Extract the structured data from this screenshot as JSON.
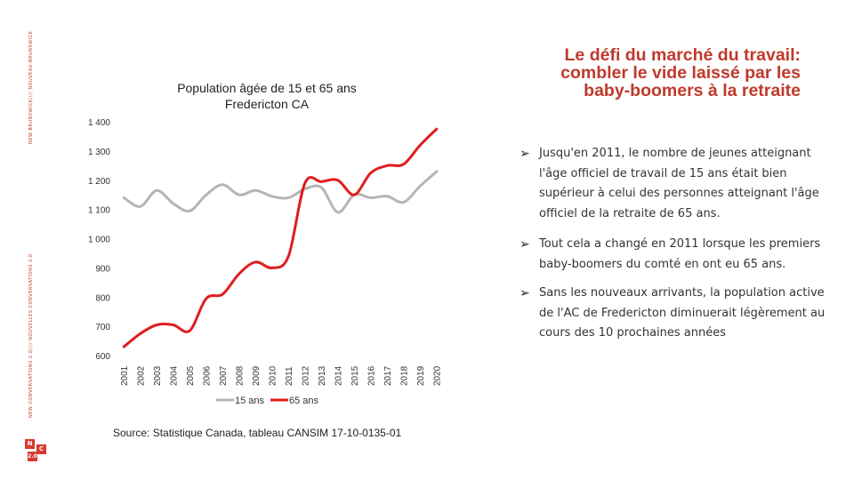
{
  "side_text": {
    "top": "NEW BRUNSWICK//// NOUVEAU-BRUNSWICK",
    "bottom": "NEW CONVERSATIONS 2.0//// NOUVELLES CONVERSATIONS 2.0"
  },
  "logo": {
    "letters": [
      "N",
      "C",
      "2.0"
    ]
  },
  "slide_title": {
    "line1": "Le défi du marché du travail:",
    "line2": "combler le vide laissé par les",
    "line3": "baby-boomers à la retraite"
  },
  "chart_data": {
    "type": "line",
    "title": "Population âgée de 15 et 65 ans",
    "subtitle": "Fredericton CA",
    "xlabel": "",
    "ylabel": "",
    "x": [
      "2001",
      "2002",
      "2003",
      "2004",
      "2005",
      "2006",
      "2007",
      "2008",
      "2009",
      "2010",
      "2011",
      "2012",
      "2013",
      "2014",
      "2015",
      "2016",
      "2017",
      "2018",
      "2019",
      "2020"
    ],
    "ylim": [
      600,
      1400
    ],
    "yticks": [
      600,
      700,
      800,
      900,
      1000,
      1100,
      1200,
      1300,
      1400
    ],
    "ytick_labels": [
      "600",
      "700",
      "800",
      "900",
      "1 000",
      "1 100",
      "1 200",
      "1 300",
      "1 400"
    ],
    "grid": false,
    "legend_position": "bottom",
    "series": [
      {
        "name": "15 ans",
        "color": "#b5b5b5",
        "values": [
          1140,
          1110,
          1165,
          1120,
          1095,
          1150,
          1185,
          1150,
          1165,
          1145,
          1140,
          1170,
          1175,
          1090,
          1150,
          1140,
          1145,
          1125,
          1180,
          1230
        ]
      },
      {
        "name": "65 ans",
        "color": "#e01e1e",
        "values": [
          630,
          675,
          705,
          705,
          685,
          795,
          810,
          880,
          920,
          900,
          940,
          1190,
          1195,
          1200,
          1150,
          1225,
          1250,
          1255,
          1320,
          1375
        ]
      }
    ]
  },
  "source": "Source: Statistique Canada, tableau CANSIM 17-10-0135-01",
  "bullets": [
    {
      "arrow": "➢",
      "text": "Jusqu'en 2011, le nombre de jeunes atteignant l'âge officiel de travail de 15 ans était bien supérieur à celui des personnes atteignant l'âge officiel de la retraite de 65 ans."
    },
    {
      "arrow": "➢",
      "text": "Tout cela a changé en 2011 lorsque les premiers baby-boomers du comté en ont eu 65 ans."
    },
    {
      "arrow": "➢",
      "text": "Sans les nouveaux arrivants, la population active de l'AC de Fredericton diminuerait légèrement au cours des 10 prochaines années"
    }
  ]
}
